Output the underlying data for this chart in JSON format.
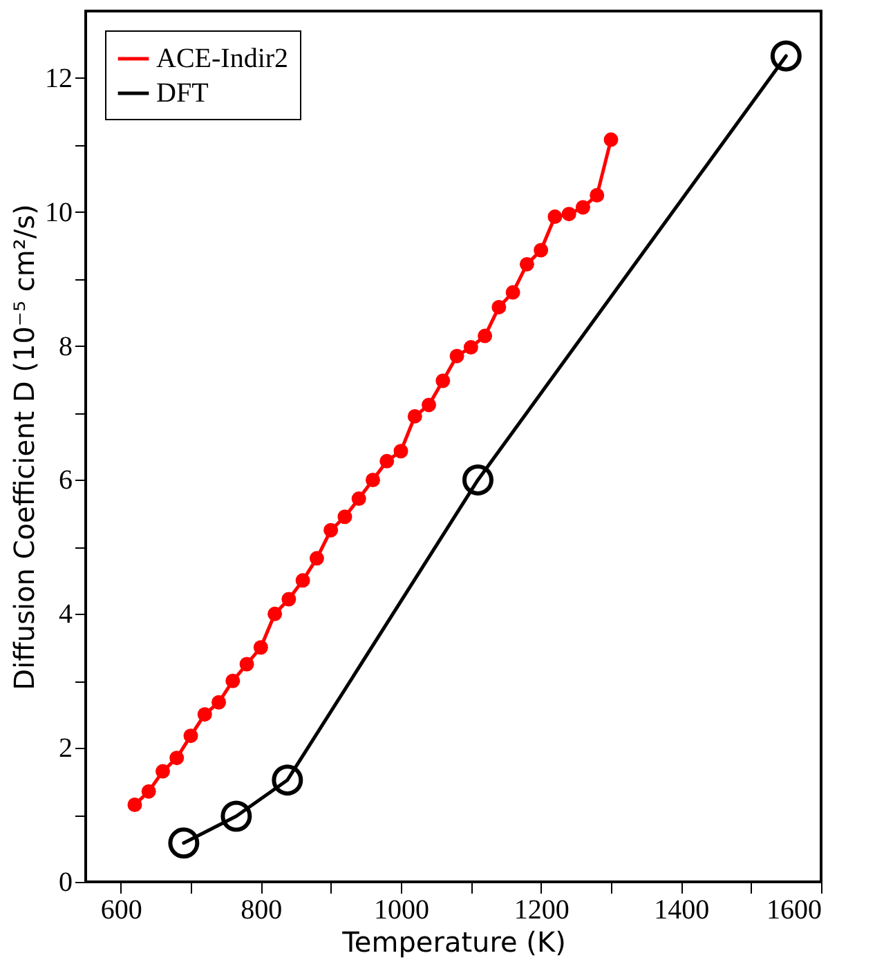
{
  "chart_data": {
    "type": "line",
    "xlabel": "Temperature (K)",
    "ylabel": "Diffusion Coefficient D (10⁻⁵ cm²/s)",
    "xlim": [
      550,
      1600
    ],
    "ylim": [
      0,
      13
    ],
    "xticks": [
      600,
      {
        "value": 700,
        "label": null
      },
      800,
      {
        "value": 900,
        "label": null
      },
      1000,
      {
        "value": 1100,
        "label": null
      },
      1200,
      {
        "value": 1300,
        "label": null
      },
      1400,
      {
        "value": 1500,
        "label": null
      },
      1600
    ],
    "yticks": [
      0,
      {
        "value": 1,
        "label": null
      },
      2,
      {
        "value": 3,
        "label": null
      },
      4,
      {
        "value": 5,
        "label": null
      },
      6,
      {
        "value": 7,
        "label": null
      },
      8,
      {
        "value": 9,
        "label": null
      },
      10,
      {
        "value": 11,
        "label": null
      },
      12
    ],
    "grid": false,
    "legend": "top left",
    "marker": "circle",
    "line_style": "solid",
    "series": [
      {
        "name": "ACE-Indir2",
        "color": "#ff0000",
        "x": [
          620,
          640,
          660,
          680,
          700,
          720,
          740,
          760,
          780,
          800,
          820,
          840,
          860,
          880,
          900,
          920,
          940,
          960,
          980,
          1000,
          1020,
          1040,
          1060,
          1080,
          1100,
          1120,
          1140,
          1160,
          1180,
          1200,
          1220,
          1240,
          1260,
          1280,
          1300
        ],
        "values": [
          1.15,
          1.35,
          1.65,
          1.85,
          2.18,
          2.5,
          2.68,
          3.0,
          3.25,
          3.5,
          4.0,
          4.22,
          4.5,
          4.83,
          5.25,
          5.45,
          5.72,
          6.0,
          6.28,
          6.43,
          6.95,
          7.12,
          7.48,
          7.85,
          7.98,
          8.15,
          8.58,
          8.8,
          9.22,
          9.43,
          9.93,
          9.97,
          10.07,
          10.25,
          11.08
        ]
      },
      {
        "name": "DFT",
        "color": "#000000",
        "x": [
          690,
          765,
          838,
          1110,
          1550
        ],
        "values": [
          0.58,
          0.98,
          1.52,
          6.0,
          12.33
        ]
      }
    ]
  }
}
